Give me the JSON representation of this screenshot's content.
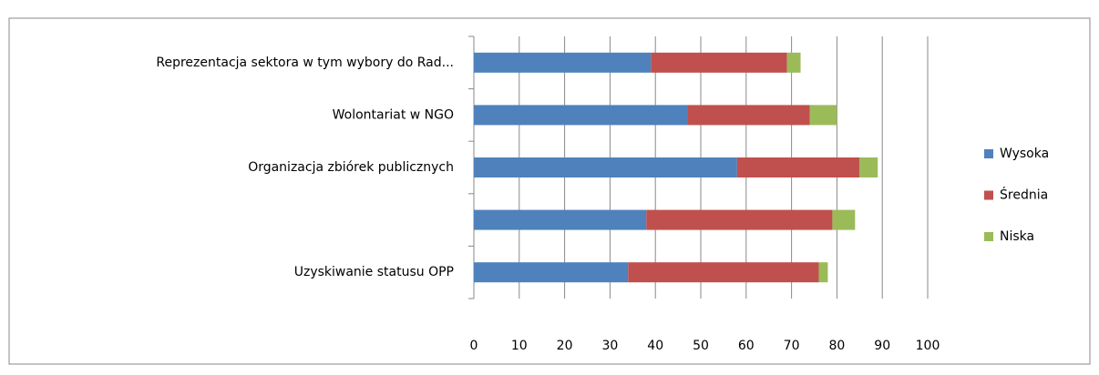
{
  "chart_data": {
    "type": "stacked-barh",
    "categories": [
      "Reprezentacja sektora w tym wybory do Rad...",
      "Wolontariat w NGO",
      "Organizacja zbiórek publicznych",
      null,
      "Uzyskiwanie statusu OPP"
    ],
    "series": [
      {
        "name": "Wysoka",
        "color": "#4f81bd",
        "values": [
          39,
          47,
          58,
          38,
          34
        ]
      },
      {
        "name": "Średnia",
        "color": "#c0504d",
        "values": [
          30,
          27,
          27,
          41,
          42
        ]
      },
      {
        "name": "Niska",
        "color": "#9bbb59",
        "values": [
          3,
          6,
          4,
          5,
          2
        ]
      }
    ],
    "xlim": [
      0,
      100
    ],
    "xticks": [
      0,
      10,
      20,
      30,
      40,
      50,
      60,
      70,
      80,
      90,
      100
    ],
    "grid": true,
    "legend": "right"
  }
}
